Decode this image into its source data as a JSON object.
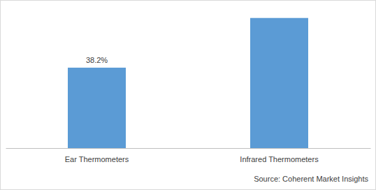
{
  "chart_data": {
    "type": "bar",
    "categories": [
      "Ear Thermometers",
      "Infrared Thermometers"
    ],
    "values": [
      38.2,
      61.8
    ],
    "value_labels": [
      "38.2%",
      null
    ],
    "data_labels": true,
    "color": "#5b9bd5",
    "ylim": [
      0,
      70
    ],
    "tick_labels": "x",
    "grid": false,
    "source": "Source: Coherent Market Insights"
  }
}
